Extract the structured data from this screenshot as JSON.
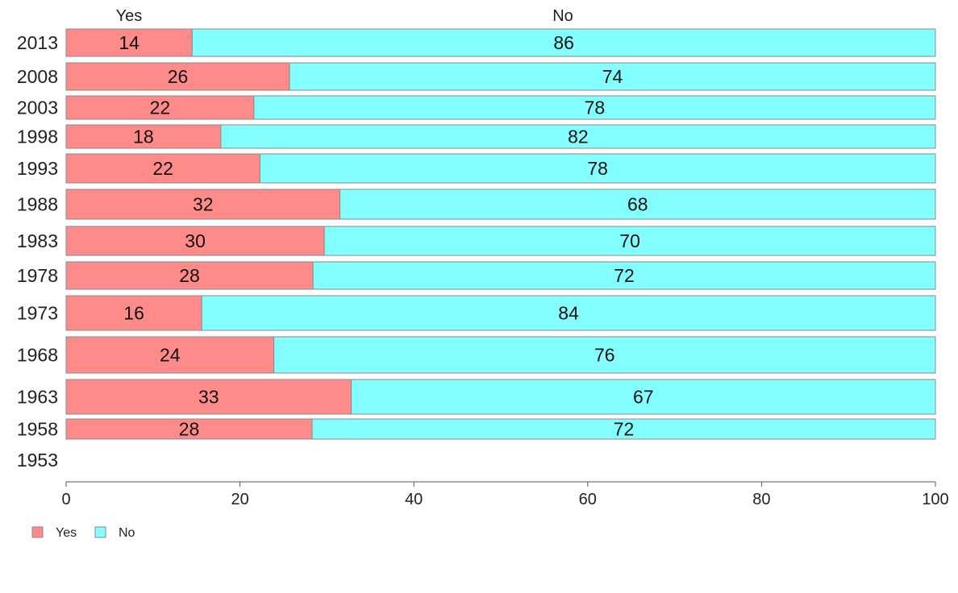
{
  "chart_data": {
    "type": "bar",
    "orientation": "horizontal",
    "stacked": true,
    "categories": [
      "2013",
      "2008",
      "2003",
      "1998",
      "1993",
      "1988",
      "1983",
      "1978",
      "1973",
      "1968",
      "1963",
      "1958",
      "1953"
    ],
    "series": [
      {
        "name": "Yes",
        "color": "#ff8a8a",
        "values": [
          14.5,
          25.7,
          21.6,
          17.8,
          22.3,
          31.5,
          29.7,
          28.4,
          15.6,
          23.9,
          32.8,
          28.3,
          null
        ],
        "labels": [
          "14",
          "26",
          "22",
          "18",
          "22",
          "32",
          "30",
          "28",
          "16",
          "24",
          "33",
          "28",
          ""
        ]
      },
      {
        "name": "No",
        "color": "#84ffff",
        "values": [
          85.5,
          74.3,
          78.4,
          82.2,
          77.7,
          68.5,
          70.3,
          71.6,
          84.4,
          76.1,
          67.2,
          71.7,
          null
        ],
        "labels": [
          "86",
          "74",
          "78",
          "82",
          "78",
          "68",
          "70",
          "72",
          "84",
          "76",
          "67",
          "72",
          ""
        ]
      }
    ],
    "header_labels": [
      "Yes",
      "No"
    ],
    "x_ticks": [
      0,
      20,
      40,
      60,
      80,
      100
    ],
    "xlim": [
      0,
      100
    ],
    "legend": {
      "position": "bottom-left",
      "entries": [
        "Yes",
        "No"
      ]
    },
    "grid": false,
    "title": "",
    "xlabel": "",
    "ylabel": ""
  }
}
